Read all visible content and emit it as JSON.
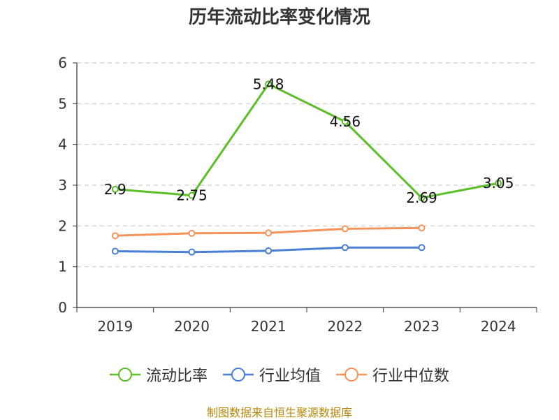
{
  "title": "历年流动比率变化情况",
  "source": "制图数据来自恒生聚源数据库",
  "chart_data": {
    "type": "line",
    "categories": [
      "2019",
      "2020",
      "2021",
      "2022",
      "2023",
      "2024"
    ],
    "ylim": [
      0,
      6
    ],
    "yticks": [
      0,
      1,
      2,
      3,
      4,
      5,
      6
    ],
    "grid": true,
    "legend_position": "bottom",
    "series": [
      {
        "name": "流动比率",
        "color": "#5cbf2a",
        "values": [
          2.9,
          2.75,
          5.48,
          4.56,
          2.69,
          3.05
        ],
        "labels": [
          "2.9",
          "2.75",
          "5.48",
          "4.56",
          "2.69",
          "3.05"
        ]
      },
      {
        "name": "行业均值",
        "color": "#4a7fd6",
        "values": [
          1.38,
          1.36,
          1.39,
          1.47,
          1.47,
          null
        ]
      },
      {
        "name": "行业中位数",
        "color": "#f5935a",
        "values": [
          1.76,
          1.82,
          1.83,
          1.93,
          1.95,
          null
        ]
      }
    ]
  }
}
